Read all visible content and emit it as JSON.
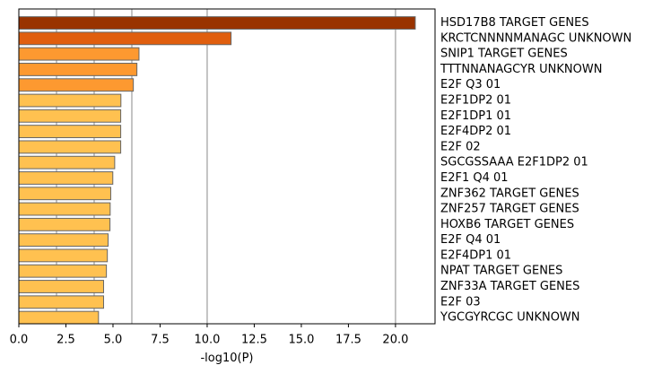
{
  "chart_data": {
    "type": "bar",
    "orientation": "horizontal",
    "categories": [
      "HSD17B8 TARGET GENES",
      "KRCTCNNNNMANAGC UNKNOWN",
      "SNIP1 TARGET GENES",
      "TTTNNANAGCYR UNKNOWN",
      "E2F Q3 01",
      "E2F1DP2 01",
      "E2F1DP1 01",
      "E2F4DP2 01",
      "E2F 02",
      "SGCGSSAAA E2F1DP2 01",
      "E2F1 Q4 01",
      "ZNF362 TARGET GENES",
      "ZNF257 TARGET GENES",
      "HOXB6 TARGET GENES",
      "E2F Q4 01",
      "E2F4DP1 01",
      "NPAT TARGET GENES",
      "ZNF33A TARGET GENES",
      "E2F 03",
      "YGCGYRCGC UNKNOWN"
    ],
    "values": [
      21.05,
      11.27,
      6.38,
      6.27,
      6.08,
      5.42,
      5.41,
      5.41,
      5.41,
      5.09,
      4.99,
      4.88,
      4.85,
      4.84,
      4.74,
      4.7,
      4.65,
      4.5,
      4.5,
      4.23
    ],
    "bar_colors": [
      "#993300",
      "#e05e0e",
      "#fd9930",
      "#fd9930",
      "#fd9930",
      "#ffc150",
      "#ffc150",
      "#ffc150",
      "#ffc150",
      "#ffc150",
      "#ffc150",
      "#ffc150",
      "#ffc150",
      "#ffc150",
      "#ffc150",
      "#ffc150",
      "#ffc150",
      "#ffc150",
      "#ffc150",
      "#ffc150"
    ],
    "bar_edge_color": "#666666",
    "xlabel": "-log10(P)",
    "ylabel": "",
    "xlim": [
      0,
      22.1
    ],
    "xticks": [
      0.0,
      2.5,
      5.0,
      7.5,
      10.0,
      12.5,
      15.0,
      17.5,
      20.0
    ],
    "xtick_labels": [
      "0.0",
      "2.5",
      "5.0",
      "7.5",
      "10.0",
      "12.5",
      "15.0",
      "17.5",
      "20.0"
    ],
    "vertical_grid_lines": [
      2,
      4,
      6,
      10,
      20
    ],
    "grid_color": "#b0b0b0",
    "category_labels_side": "right"
  }
}
